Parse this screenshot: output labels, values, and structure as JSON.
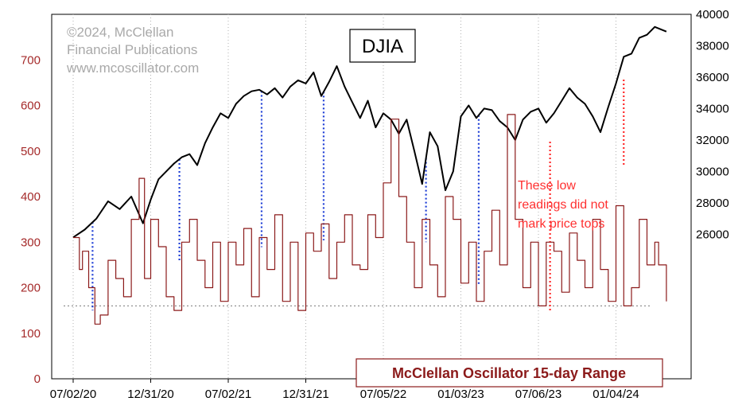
{
  "copyright": {
    "line1": "©2024, McClellan",
    "line2": "Financial Publications",
    "line3": "www.mcoscillator.com"
  },
  "colors": {
    "djia": "#000000",
    "range": "#8b1a1a",
    "blue_marker": "#1f3fd6",
    "red_marker": "#ff2a2a",
    "left_axis": "#a52a2a",
    "grid": "#b0b0b0"
  },
  "chart_data": {
    "type": "line",
    "title": "DJIA",
    "legend": "McClellan Oscillator 15-day Range",
    "annotation": [
      "These low",
      "readings did not",
      "mark price tops"
    ],
    "x_ticks": [
      "07/02/20",
      "12/31/20",
      "07/02/21",
      "12/31/21",
      "07/05/22",
      "01/03/23",
      "07/06/23",
      "01/04/24"
    ],
    "left_axis": {
      "label": "",
      "ticks": [
        0,
        100,
        200,
        300,
        400,
        500,
        600,
        700
      ],
      "range": [
        0,
        800
      ]
    },
    "right_axis": {
      "label": "",
      "ticks": [
        26000,
        28000,
        30000,
        32000,
        34000,
        36000,
        38000,
        40000
      ],
      "range": [
        16800,
        40000
      ]
    },
    "grid": {
      "vertical": true,
      "horizontal": false
    },
    "reference_line": {
      "value": 160,
      "axis": "left",
      "style": "dotted"
    },
    "series": [
      {
        "axis": "right",
        "x": [
          0,
          0.15,
          0.3,
          0.45,
          0.6,
          0.75,
          0.9,
          1.0,
          1.1,
          1.2,
          1.3,
          1.4,
          1.5,
          1.6,
          1.7,
          1.8,
          1.9,
          2.0,
          2.1,
          2.2,
          2.3,
          2.4,
          2.5,
          2.6,
          2.7,
          2.8,
          2.9,
          3.0,
          3.1,
          3.2,
          3.3,
          3.4,
          3.5,
          3.6,
          3.7,
          3.8,
          3.9,
          4.0,
          4.1,
          4.2,
          4.3,
          4.4,
          4.5,
          4.6,
          4.7,
          4.8,
          4.9,
          5.0,
          5.1,
          5.2,
          5.3,
          5.4,
          5.5,
          5.6,
          5.7,
          5.8,
          5.9,
          6.0,
          6.1,
          6.2,
          6.3,
          6.4,
          6.5,
          6.6,
          6.7,
          6.8,
          6.9,
          7.0,
          7.1,
          7.2,
          7.3,
          7.4,
          7.5,
          7.65
        ],
        "values": [
          25800,
          26300,
          27000,
          28100,
          27600,
          28400,
          26700,
          28200,
          29500,
          30000,
          30500,
          30900,
          31100,
          30400,
          31800,
          32800,
          33700,
          33400,
          34300,
          34800,
          35100,
          35200,
          34900,
          35300,
          34700,
          35400,
          35800,
          35600,
          36300,
          34800,
          35700,
          36700,
          35400,
          34400,
          33400,
          34500,
          32800,
          33700,
          33300,
          32400,
          33300,
          31300,
          29200,
          32500,
          31600,
          28800,
          30000,
          33500,
          34200,
          33400,
          34000,
          33900,
          33200,
          32800,
          32000,
          33300,
          33800,
          34000,
          33100,
          33700,
          34500,
          35300,
          34700,
          34300,
          33500,
          32500,
          34100,
          35600,
          37300,
          37500,
          38500,
          38700,
          39200,
          38900
        ]
      },
      {
        "axis": "left",
        "x": [
          0,
          0.08,
          0.12,
          0.2,
          0.28,
          0.35,
          0.45,
          0.55,
          0.65,
          0.75,
          0.85,
          0.92,
          1.0,
          1.1,
          1.2,
          1.3,
          1.4,
          1.5,
          1.6,
          1.7,
          1.8,
          1.9,
          2.0,
          2.1,
          2.2,
          2.3,
          2.4,
          2.5,
          2.6,
          2.7,
          2.8,
          2.9,
          3.0,
          3.1,
          3.2,
          3.3,
          3.4,
          3.5,
          3.6,
          3.7,
          3.8,
          3.9,
          4.0,
          4.1,
          4.2,
          4.3,
          4.4,
          4.5,
          4.6,
          4.7,
          4.8,
          4.9,
          5.0,
          5.1,
          5.2,
          5.3,
          5.4,
          5.5,
          5.6,
          5.7,
          5.8,
          5.9,
          6.0,
          6.1,
          6.2,
          6.3,
          6.4,
          6.5,
          6.6,
          6.7,
          6.8,
          6.9,
          7.0,
          7.1,
          7.2,
          7.3,
          7.4,
          7.5,
          7.55,
          7.65
        ],
        "values": [
          310,
          240,
          280,
          200,
          120,
          140,
          260,
          220,
          180,
          350,
          440,
          220,
          350,
          290,
          180,
          150,
          300,
          350,
          260,
          200,
          300,
          170,
          300,
          250,
          330,
          180,
          310,
          240,
          360,
          170,
          300,
          150,
          320,
          280,
          340,
          220,
          300,
          360,
          250,
          240,
          360,
          310,
          430,
          570,
          400,
          300,
          200,
          350,
          250,
          180,
          400,
          350,
          210,
          300,
          170,
          280,
          370,
          250,
          580,
          350,
          200,
          300,
          160,
          300,
          280,
          190,
          320,
          260,
          200,
          350,
          240,
          170,
          380,
          160,
          200,
          350,
          250,
          300,
          250,
          170
        ]
      }
    ],
    "markers_blue_x": [
      0.25,
      1.37,
      2.43,
      3.23,
      4.55,
      5.23
    ],
    "markers_red_x": [
      6.15,
      7.1
    ]
  }
}
